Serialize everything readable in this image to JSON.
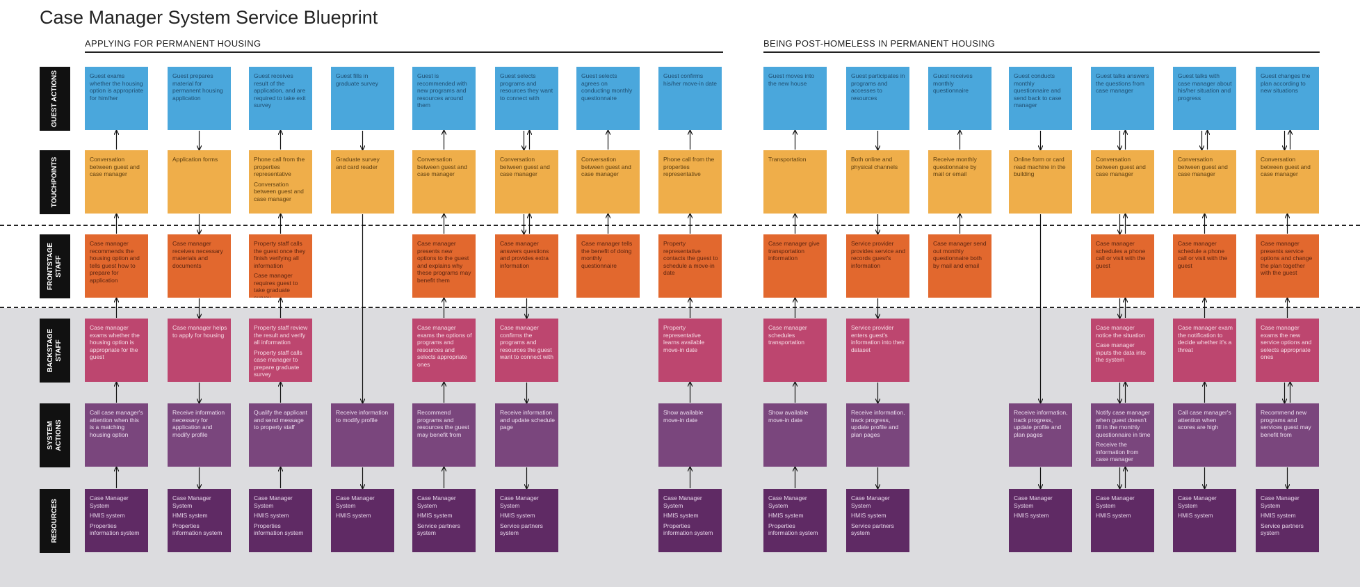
{
  "title": "Case Manager System Service Blueprint",
  "phases": [
    "APPLYING FOR PERMANENT HOUSING",
    "BEING POST-HOMELESS IN PERMANENT HOUSING"
  ],
  "rows": [
    "GUEST ACTIONS",
    "TOUCHPOINTS",
    "FRONTSTAGE\nSTAFF",
    "BACKSTAGE\nSTAFF",
    "SYSTEM\nACTIONS",
    "RESOURCES"
  ],
  "colors": {
    "guest": "#4aa7dc",
    "touch": "#efae4a",
    "front": "#e2682e",
    "back": "#bd466f",
    "sys": "#7a467d",
    "res": "#5f2a64"
  },
  "columns": [
    {
      "guest": "Guest exams whether the housing option is appropriate for him/her",
      "touch": [
        "Conversation between guest and case manager"
      ],
      "front": [
        "Case manager recommends the housing option and tells guest how to prepare for application"
      ],
      "back": [
        "Case manager exams whether the housing option is appropriate for the guest"
      ],
      "sys": [
        "Call case manager's attention when this is a matching housing option"
      ],
      "res": [
        "Case Manager System",
        "HMIS system",
        "Properties information system"
      ]
    },
    {
      "guest": "Guest prepares material for permanent housing application",
      "touch": [
        "Application forms"
      ],
      "front": [
        "Case manager receives necessary materials and documents"
      ],
      "back": [
        "Case manager helps to apply for housing"
      ],
      "sys": [
        "Receive information necessary for application and modify profile"
      ],
      "res": [
        "Case Manager System",
        "HMIS system",
        "Properties information system"
      ]
    },
    {
      "guest": "Guest receives result of the application, and are required to take exit survey",
      "touch": [
        "Phone call from the properties representative",
        "Conversation between guest and case manager"
      ],
      "front": [
        "Property staff calls the guest once they finish verifying all information",
        "Case manager requires guest to take graduate survey"
      ],
      "back": [
        "Property staff review the result and verify all information",
        "Property staff calls case manager to prepare graduate survey"
      ],
      "sys": [
        "Qualify the applicant and send message to property staff"
      ],
      "res": [
        "Case Manager System",
        "HMIS system",
        "Properties information system"
      ]
    },
    {
      "guest": "Guest fills in graduate survey",
      "touch": [
        "Graduate survey and card reader"
      ],
      "front": null,
      "back": null,
      "sys": [
        "Receive information to modify profile"
      ],
      "res": [
        "Case Manager System",
        "HMIS system"
      ]
    },
    {
      "guest": "Guest is recommended with new programs and resources around them",
      "touch": [
        "Conversation between guest and case manager"
      ],
      "front": [
        "Case manager presents new options to the guest and explains why these programs may benefit them"
      ],
      "back": [
        "Case manager exams the options of programs and resources and selects appropriate ones"
      ],
      "sys": [
        "Recommend programs and resources the guest may benefit from"
      ],
      "res": [
        "Case Manager System",
        "HMIS system",
        "Service partners system"
      ]
    },
    {
      "guest": "Guest selects programs and resources they want to connect with",
      "touch": [
        "Conversation between guest and case manager"
      ],
      "front": [
        "Case manager answers questions and provides extra information"
      ],
      "back": [
        "Case manager confirms the programs and resources the guest want to connect with"
      ],
      "sys": [
        "Receive information and update schedule page"
      ],
      "res": [
        "Case Manager System",
        "HMIS system",
        "Service partners system"
      ]
    },
    {
      "guest": "Guest selects agrees on conducting monthly questionnaire",
      "touch": [
        "Conversation between guest and case manager"
      ],
      "front": [
        "Case manager tells the benefit of doing monthly questionnaire"
      ],
      "back": null,
      "sys": null,
      "res": null
    },
    {
      "guest": "Guest confirms his/her move-in date",
      "touch": [
        "Phone call from the properties representative"
      ],
      "front": [
        "Property representative contacts the guest to schedule a move-in date"
      ],
      "back": [
        "Property representative learns available move-in date"
      ],
      "sys": [
        "Show available move-in date"
      ],
      "res": [
        "Case Manager System",
        "HMIS system",
        "Properties information system"
      ]
    },
    {
      "guest": "Guest moves into the new house",
      "touch": [
        "Transportation"
      ],
      "front": [
        "Case manager give transportation information"
      ],
      "back": [
        "Case manager schedules transportation"
      ],
      "sys": [
        "Show available move-in date"
      ],
      "res": [
        "Case Manager System",
        "HMIS system",
        "Properties information system"
      ]
    },
    {
      "guest": "Guest participates in programs and accesses to resources",
      "touch": [
        "Both online and physical channels"
      ],
      "front": [
        "Service provider provides service and records guest's information"
      ],
      "back": [
        "Service provider enters guest's information into their dataset"
      ],
      "sys": [
        "Receive information, track progress, update profile and plan pages"
      ],
      "res": [
        "Case Manager System",
        "HMIS system",
        "Service partners system"
      ]
    },
    {
      "guest": "Guest receives monthly questionnaire",
      "touch": [
        "Receive monthly questionnaire by mail or email"
      ],
      "front": [
        "Case manager send out monthly questionnaire both by mail and email"
      ],
      "back": null,
      "sys": null,
      "res": null
    },
    {
      "guest": "Guest conducts monthly questionnaire and send back to case manager",
      "touch": [
        "Online form or card read machine in the building"
      ],
      "front": null,
      "back": null,
      "sys": [
        "Receive information, track progress, update profile and plan pages"
      ],
      "res": [
        "Case Manager System",
        "HMIS system"
      ]
    },
    {
      "guest": "Guest talks answers the questions from case manager",
      "touch": [
        "Conversation between guest and case manager"
      ],
      "front": [
        "Case manager schedules a phone call or visit with the guest"
      ],
      "back": [
        "Case manager notice the situation",
        "Case manager inputs the data into the system"
      ],
      "sys": [
        "Notify case manager when guest doesn't fill in the monthly questionnaire in time",
        "Receive the information from case manager"
      ],
      "res": [
        "Case Manager System",
        "HMIS system"
      ]
    },
    {
      "guest": "Guest talks with case manager about his/her situation and progress",
      "touch": [
        "Conversation between guest and case manager"
      ],
      "front": [
        "Case manager schedule a phone call or visit with the guest"
      ],
      "back": [
        "Case manager exam the notification to decide whether it's a threat"
      ],
      "sys": [
        "Call case manager's attention when scores are high"
      ],
      "res": [
        "Case Manager System",
        "HMIS system"
      ]
    },
    {
      "guest": "Guest changes the plan according to new situations",
      "touch": [
        "Conversation between guest and case manager"
      ],
      "front": [
        "Case manager presents service options and change the plan together with the guest"
      ],
      "back": [
        "Case manager exams the new service options and selects appropriate ones"
      ],
      "sys": [
        "Recommend new programs and services guest may benefit from"
      ],
      "res": [
        "Case Manager System",
        "HMIS system",
        "Service partners system"
      ]
    }
  ]
}
